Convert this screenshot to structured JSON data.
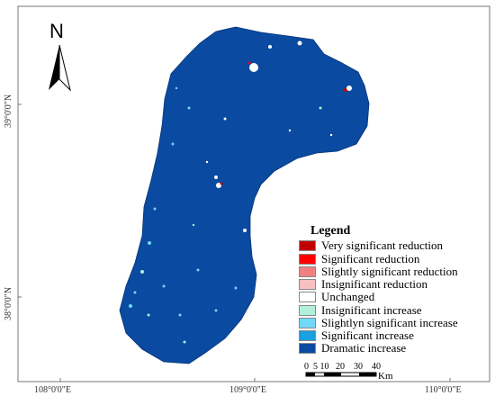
{
  "north_arrow": {
    "letter": "N"
  },
  "axes": {
    "x_ticks": [
      "108°0'0\"E",
      "109°0'0\"E",
      "110°0'0\"E"
    ],
    "y_ticks": [
      "39°0'0\"N",
      "38°0'0\"N"
    ]
  },
  "legend": {
    "title": "Legend",
    "items": [
      {
        "label": "Very significant reduction",
        "color": "#c00000"
      },
      {
        "label": "Significant reduction",
        "color": "#ff0000"
      },
      {
        "label": "Slightly significant reduction",
        "color": "#f08080"
      },
      {
        "label": "Insignificant reduction",
        "color": "#f8c0c0"
      },
      {
        "label": "Unchanged",
        "color": "#ffffff"
      },
      {
        "label": "Insignificant increase",
        "color": "#b0f0d8"
      },
      {
        "label": "Slightlyn significant increase",
        "color": "#70d8f8"
      },
      {
        "label": "Significant increase",
        "color": "#1aa0e0"
      },
      {
        "label": "Dramatic increase",
        "color": "#0a4aa0"
      }
    ]
  },
  "scale_bar": {
    "ticks": "0  5 10   20    30    40",
    "unit": "Km"
  },
  "colors": {
    "region": "#0a4aa0",
    "background": "#ffffff"
  }
}
